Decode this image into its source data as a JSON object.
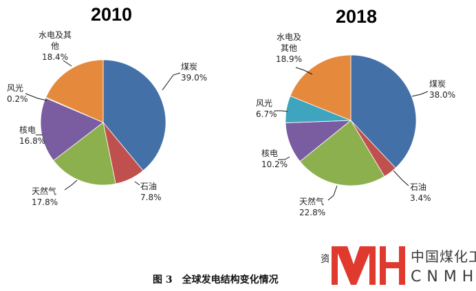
{
  "chart_data": [
    {
      "type": "pie",
      "title": "2010",
      "slices": [
        {
          "label": "煤炭",
          "value_label": "39.0%",
          "value": 39.0,
          "color": "#4470a8"
        },
        {
          "label": "石油",
          "value_label": "7.8%",
          "value": 7.8,
          "color": "#c0504d"
        },
        {
          "label": "天然气",
          "value_label": "17.8%",
          "value": 17.8,
          "color": "#8db04f"
        },
        {
          "label": "核电",
          "value_label": "16.8%",
          "value": 16.8,
          "color": "#7a5da1"
        },
        {
          "label": "风光",
          "value_label": "0.2%",
          "value": 0.2,
          "color": "#3fa4bd"
        },
        {
          "label": "水电及其他",
          "value_label": "18.4%",
          "value": 18.4,
          "color": "#e58a3c"
        }
      ]
    },
    {
      "type": "pie",
      "title": "2018",
      "slices": [
        {
          "label": "煤炭",
          "value_label": "38.0%",
          "value": 38.0,
          "color": "#4470a8"
        },
        {
          "label": "石油",
          "value_label": "3.4%",
          "value": 3.4,
          "color": "#c0504d"
        },
        {
          "label": "天然气",
          "value_label": "22.8%",
          "value": 22.8,
          "color": "#8db04f"
        },
        {
          "label": "核电",
          "value_label": "10.2%",
          "value": 10.2,
          "color": "#7a5da1"
        },
        {
          "label": "风光",
          "value_label": "6.7%",
          "value": 6.7,
          "color": "#3fa4bd"
        },
        {
          "label": "水电及其他",
          "value_label": "18.9%",
          "value": 18.9,
          "color": "#e58a3c"
        }
      ]
    }
  ],
  "caption": "图 3　全球发电结构变化情况",
  "source_fragment": "资",
  "watermark": {
    "name_cn": "中国煤化工",
    "name_en": "CNMHG",
    "color": "#e03a2e"
  }
}
